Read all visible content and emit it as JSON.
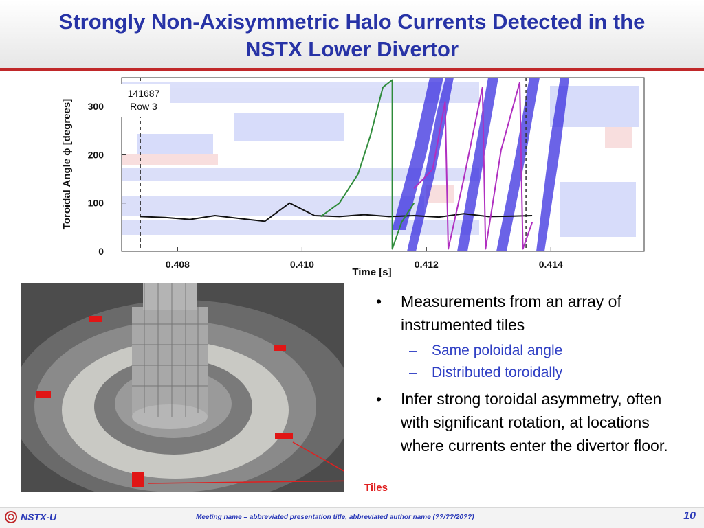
{
  "slide": {
    "title_line1": "Strongly Non-Axisymmetric Halo Currents Detected in the",
    "title_line2": "NSTX Lower Divertor"
  },
  "chart_data": {
    "type": "heatmap",
    "xlabel": "Time [s]",
    "ylabel": "Toroidal Angle ϕ [degrees]",
    "x_ticks": [
      "0.408",
      "0.410",
      "0.412",
      "0.414"
    ],
    "y_ticks": [
      "0",
      "100",
      "200",
      "300"
    ],
    "xlim": [
      0.4071,
      0.4155
    ],
    "ylim": [
      0,
      360
    ],
    "annotation": [
      "141687",
      "Row 3"
    ],
    "dashed_lines_x": [
      0.4074,
      0.4136
    ],
    "series": [
      {
        "color": "#111111",
        "x": [
          0.4074,
          0.4078,
          0.4082,
          0.4086,
          0.409,
          0.4094,
          0.4098,
          0.4102,
          0.4106,
          0.411,
          0.4114,
          0.4118,
          0.4122,
          0.4126,
          0.413,
          0.4134,
          0.4137
        ],
        "y": [
          72,
          70,
          66,
          74,
          68,
          62,
          100,
          74,
          72,
          76,
          72,
          74,
          71,
          78,
          72,
          73,
          74
        ]
      },
      {
        "color": "#2e8b3a",
        "x": [
          0.4103,
          0.4106,
          0.4109,
          0.4111,
          0.4113,
          0.41145,
          0.41145,
          0.4116,
          0.4118
        ],
        "y": [
          72,
          100,
          160,
          240,
          340,
          355,
          5,
          60,
          100
        ]
      },
      {
        "color": "#b02fc0",
        "x": [
          0.4118,
          0.4121,
          0.4123,
          0.41235,
          0.4126,
          0.4129,
          0.41295,
          0.4132,
          0.4135,
          0.41355,
          0.4137
        ],
        "y": [
          130,
          170,
          310,
          5,
          150,
          340,
          5,
          210,
          350,
          5,
          60
        ]
      }
    ]
  },
  "photo": {
    "label": "Tiles",
    "alt": "Photo of NSTX lower divertor with instrumented tiles marked in red"
  },
  "bullets": [
    {
      "text": "Measurements from an array of instrumented tiles",
      "sub": [
        "Same poloidal angle",
        "Distributed toroidally"
      ]
    },
    {
      "text": "Infer strong toroidal asymmetry, often with significant rotation, at locations where currents enter the divertor floor.",
      "sub": []
    }
  ],
  "footer": {
    "brand": "NSTX-U",
    "meeting": "Meeting name – abbreviated presentation title,  abbreviated author name  (??/??/20??)",
    "page": "10"
  },
  "colors": {
    "title": "#2733a6",
    "accent": "#c0282a",
    "sub_bullet": "#2f3fc4"
  }
}
